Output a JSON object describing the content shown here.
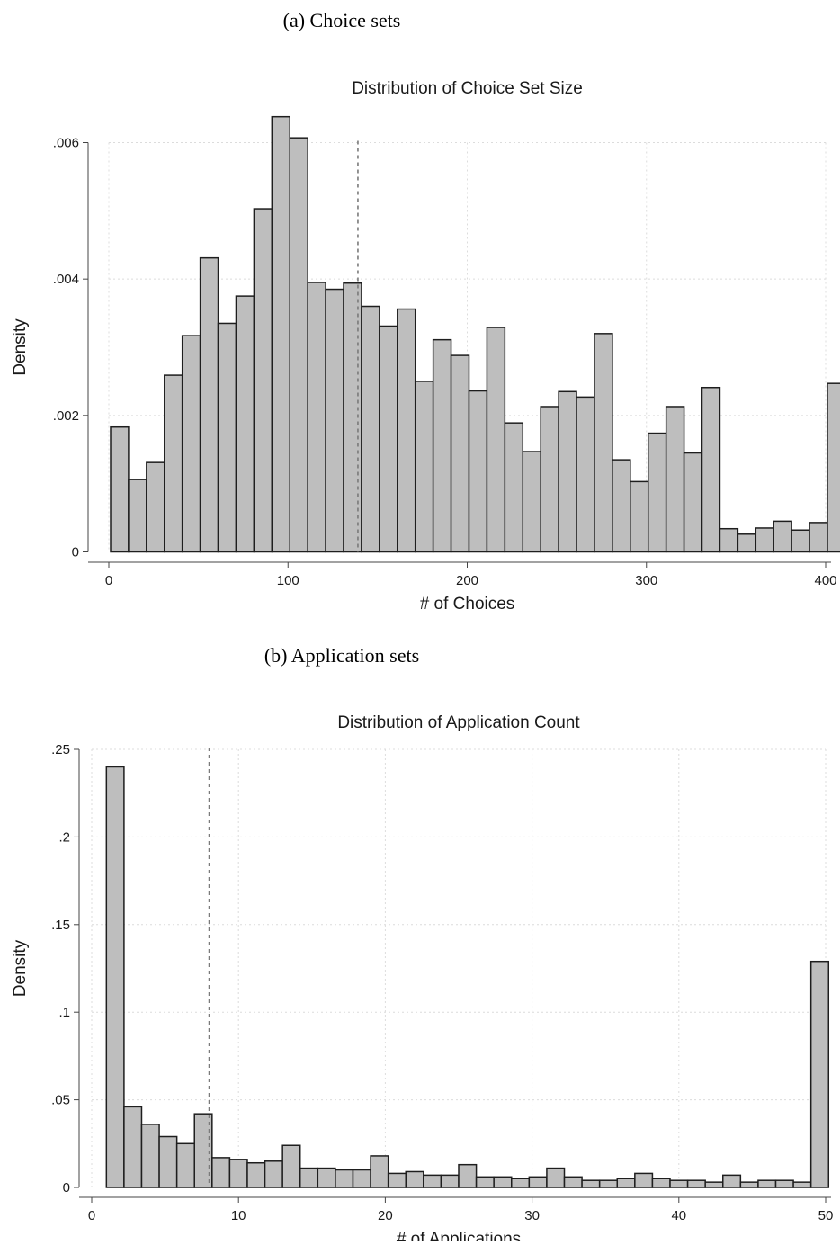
{
  "captions": {
    "a": "(a) Choice sets",
    "b": "(b) Application sets"
  },
  "chart_data": [
    {
      "type": "bar",
      "title": "Distribution of Choice Set Size",
      "xlabel": "# of Choices",
      "ylabel": "Density",
      "xlim": [
        0,
        400
      ],
      "ylim": [
        0,
        0.006
      ],
      "x_ticks": [
        0,
        100,
        200,
        300,
        400
      ],
      "x_tick_labels": [
        "0",
        "100",
        "200",
        "300",
        "400"
      ],
      "y_ticks": [
        0,
        0.002,
        0.004,
        0.006
      ],
      "y_tick_labels": [
        "0",
        ".002",
        ".004",
        ".006"
      ],
      "grid": true,
      "bin_width": 10,
      "bin_starts": [
        1,
        11,
        21,
        31,
        41,
        51,
        61,
        71,
        81,
        91,
        101,
        111,
        121,
        131,
        141,
        151,
        161,
        171,
        181,
        191,
        201,
        211,
        221,
        231,
        241,
        251,
        261,
        271,
        281,
        291,
        301,
        311,
        321,
        331,
        341,
        351,
        361,
        371,
        381,
        391
      ],
      "values": [
        0.00183,
        0.00106,
        0.00131,
        0.00259,
        0.00317,
        0.00431,
        0.00335,
        0.00375,
        0.00503,
        0.00638,
        0.00607,
        0.00395,
        0.00385,
        0.00394,
        0.0036,
        0.00331,
        0.00356,
        0.0025,
        0.00311,
        0.00288,
        0.00236,
        0.00329,
        0.00189,
        0.00147,
        0.00213,
        0.00235,
        0.00227,
        0.0032,
        0.00135,
        0.00103,
        0.00174,
        0.00213,
        0.00145,
        0.00241,
        0.00034,
        0.00026,
        0.00035,
        0.00045,
        0.00032,
        0.00043
      ],
      "last_bin_value": 0.00247,
      "reference_line_x": 139,
      "fill_color": "#bebebe",
      "edge_color": "#1e1e1e",
      "ref_line_color": "#7a7a7a"
    },
    {
      "type": "bar",
      "title": "Distribution of Application Count",
      "xlabel": "# of Applications",
      "ylabel": "Density",
      "xlim": [
        0,
        50
      ],
      "ylim": [
        0,
        0.25
      ],
      "x_ticks": [
        0,
        10,
        20,
        30,
        40,
        50
      ],
      "x_tick_labels": [
        "0",
        "10",
        "20",
        "30",
        "40",
        "50"
      ],
      "y_ticks": [
        0,
        0.05,
        0.1,
        0.15,
        0.2,
        0.25
      ],
      "y_tick_labels": [
        "0",
        ".05",
        ".1",
        ".15",
        ".2",
        ".25"
      ],
      "grid": true,
      "bin_width": 1.2,
      "bin_starts": [
        1,
        2.2,
        3.4,
        4.6,
        5.8,
        7,
        8.2,
        9.4,
        10.6,
        11.8,
        13,
        14.2,
        15.4,
        16.6,
        17.8,
        19,
        20.2,
        21.4,
        22.6,
        23.8,
        25,
        26.2,
        27.4,
        28.6,
        29.8,
        31,
        32.2,
        33.4,
        34.6,
        35.8,
        37,
        38.2,
        39.4,
        40.6,
        41.8,
        43,
        44.2,
        45.4,
        46.6,
        47.8
      ],
      "values": [
        0.24,
        0.046,
        0.036,
        0.029,
        0.025,
        0.042,
        0.017,
        0.016,
        0.014,
        0.015,
        0.024,
        0.011,
        0.011,
        0.01,
        0.01,
        0.018,
        0.008,
        0.009,
        0.007,
        0.007,
        0.013,
        0.006,
        0.006,
        0.005,
        0.006,
        0.011,
        0.006,
        0.004,
        0.004,
        0.005,
        0.008,
        0.005,
        0.004,
        0.004,
        0.003,
        0.007,
        0.003,
        0.004,
        0.004,
        0.003
      ],
      "last_bin_value": 0.129,
      "reference_line_x": 8,
      "fill_color": "#bebebe",
      "edge_color": "#1e1e1e",
      "ref_line_color": "#7a7a7a"
    }
  ]
}
